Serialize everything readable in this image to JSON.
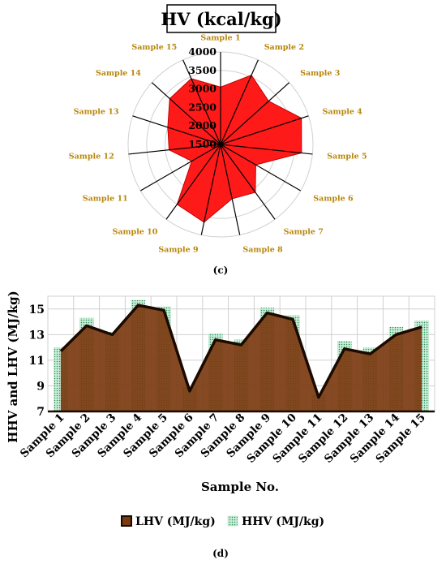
{
  "figure": {
    "panel_c_label": "(c)",
    "panel_d_label": "(d)"
  },
  "colors": {
    "radar_fill": "#ff1a1a",
    "radar_edge": "#c00000",
    "radar_spoke": "#000000",
    "radar_label": "#b8860b",
    "lhv_fill": "#7b3a10",
    "lhv_edge": "#1a0a00",
    "hhv_fill": "#c8eed8",
    "hhv_dot": "#2e8b57",
    "grid": "#d0d0d0"
  },
  "chart_data": [
    {
      "type": "radar",
      "title": "HV (kcal/kg)",
      "categories": [
        "Sample 1",
        "Sample 2",
        "Sample 3",
        "Sample 4",
        "Sample 5",
        "Sample 6",
        "Sample 7",
        "Sample 8",
        "Sample 9",
        "Sample 10",
        "Sample 11",
        "Sample 12",
        "Sample 13",
        "Sample 14",
        "Sample 15"
      ],
      "r_ticks": [
        1500,
        2000,
        2500,
        3000,
        3500,
        4000
      ],
      "rlim": [
        1500,
        4000
      ],
      "series": [
        {
          "values": [
            3050,
            3550,
            3250,
            3800,
            3700,
            2600,
            3100,
            3000,
            3650,
            3500,
            2400,
            2900,
            3000,
            3350,
            3450
          ]
        }
      ],
      "legend": "none"
    },
    {
      "type": "area",
      "xlabel": "Sample No.",
      "ylabel": "HHV and LHV (MJ/kg)",
      "categories": [
        "Sample 1",
        "Sample 2",
        "Sample 3",
        "Sample 4",
        "Sample 5",
        "Sample 6",
        "Sample 7",
        "Sample 8",
        "Sample 9",
        "Sample 10",
        "Sample 11",
        "Sample 12",
        "Sample 13",
        "Sample 14",
        "Sample 15"
      ],
      "y_ticks": [
        7,
        9,
        11,
        13,
        15
      ],
      "ylim": [
        7,
        16
      ],
      "grid": true,
      "legend_position": "bottom",
      "series": [
        {
          "name": "LHV (MJ/kg)",
          "style": "area",
          "values": [
            11.6,
            13.6,
            12.9,
            15.2,
            14.8,
            8.5,
            12.5,
            12.1,
            14.6,
            14.1,
            8.0,
            11.8,
            11.4,
            12.9,
            13.5
          ]
        },
        {
          "name": "HHV (MJ/kg)",
          "style": "bar",
          "values": [
            12.0,
            14.3,
            13.2,
            15.7,
            15.2,
            8.9,
            13.1,
            12.6,
            15.1,
            14.5,
            8.3,
            12.5,
            12.0,
            13.6,
            14.1
          ]
        }
      ]
    }
  ]
}
